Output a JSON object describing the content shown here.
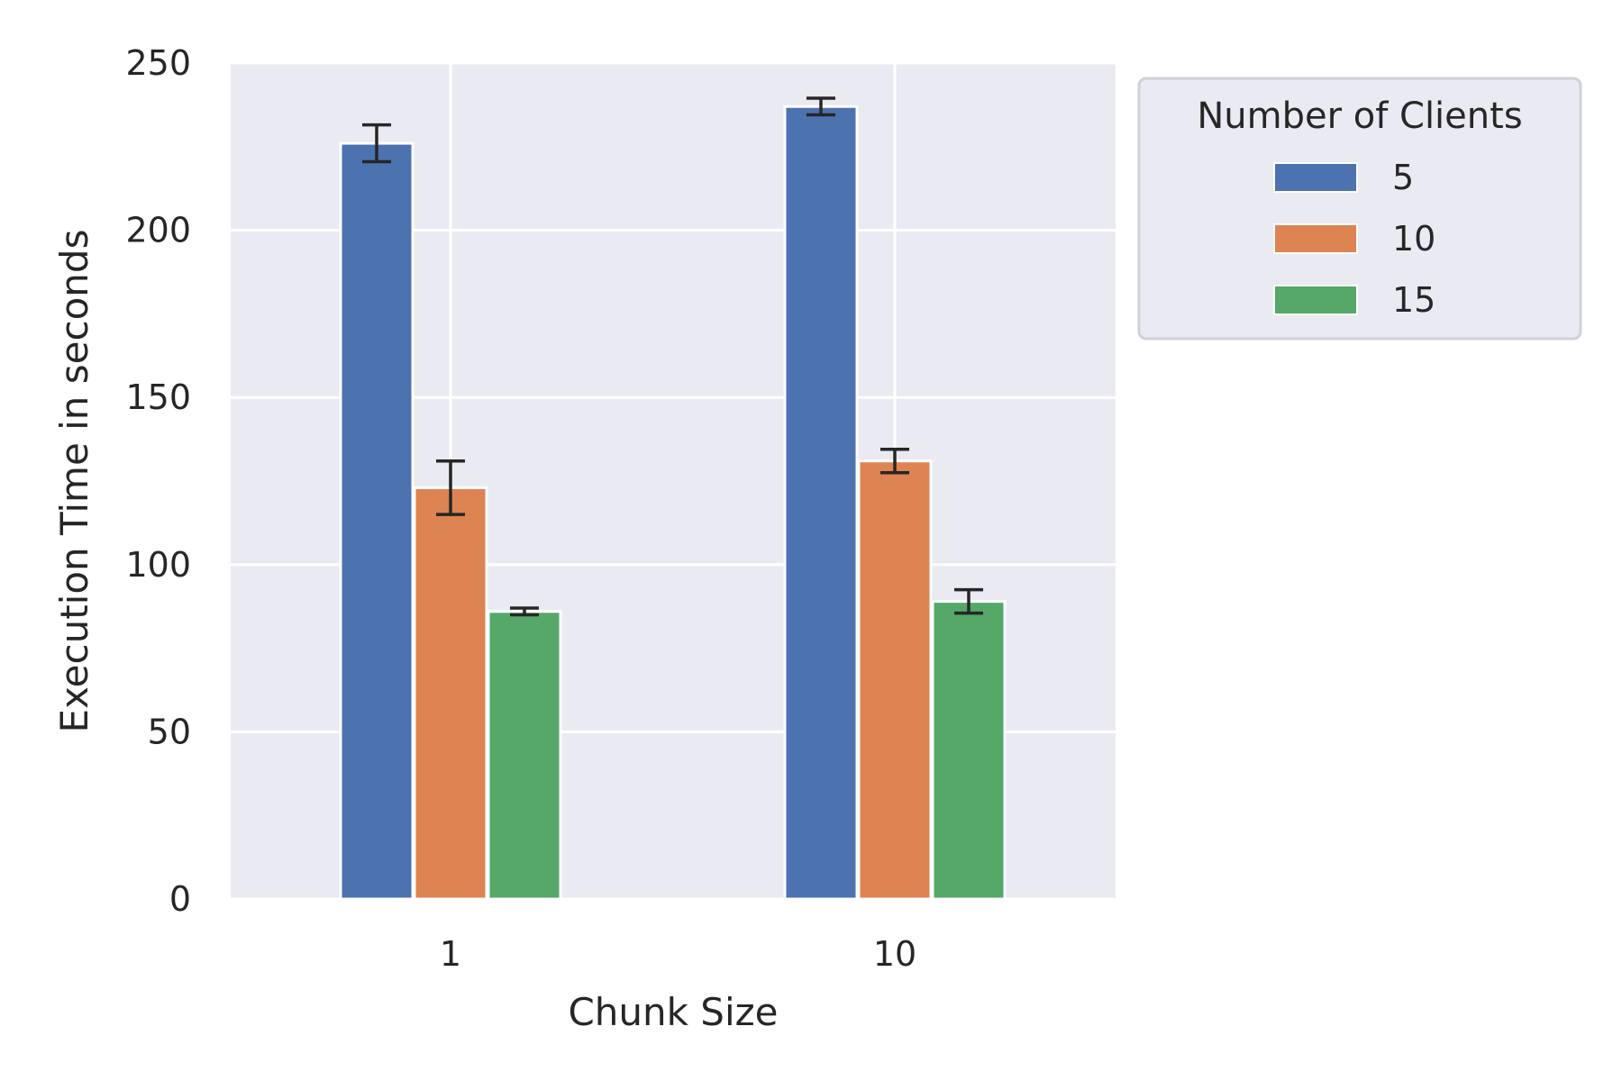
{
  "chart_data": {
    "type": "bar",
    "categories": [
      "1",
      "10"
    ],
    "xlabel": "Chunk Size",
    "ylabel": "Execution Time in seconds",
    "ylim": [
      0,
      250
    ],
    "yticks": [
      0,
      50,
      100,
      150,
      200,
      250
    ],
    "grid": true,
    "legend": {
      "title": "Number of Clients",
      "placement": "outside-top-right"
    },
    "series": [
      {
        "name": "5",
        "color": "#4c72b0",
        "values": [
          226,
          237
        ],
        "errors": [
          5.5,
          2.5
        ]
      },
      {
        "name": "10",
        "color": "#dd8452",
        "values": [
          123,
          131
        ],
        "errors": [
          8,
          3.5
        ]
      },
      {
        "name": "15",
        "color": "#55a868",
        "values": [
          86,
          89
        ],
        "errors": [
          1,
          3.5
        ]
      }
    ]
  }
}
